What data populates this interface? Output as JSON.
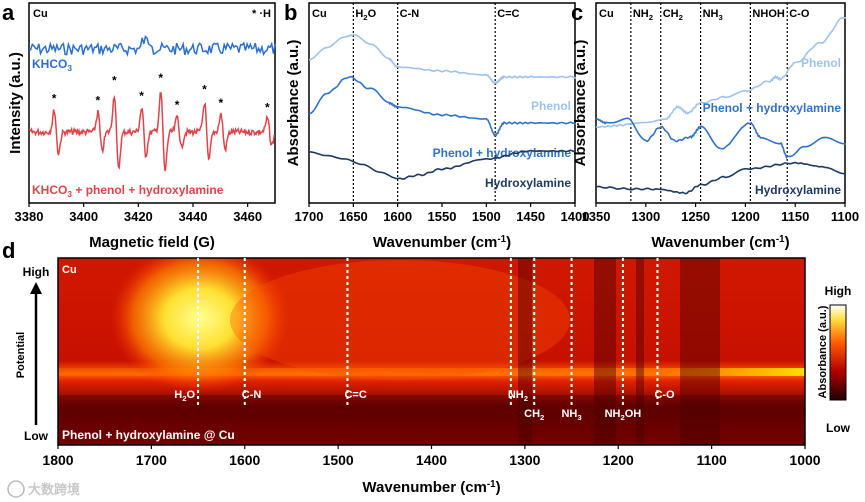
{
  "colors": {
    "blue": "#2a6fd1",
    "red": "#e0434a",
    "light_blue": "#9fc3ea",
    "mid_blue": "#2f72c8",
    "navy": "#1d3a63"
  },
  "watermark": "大数跨境",
  "chart_data": [
    {
      "panel": "a",
      "type": "line",
      "xlabel": "Magnetic field (G)",
      "ylabel": "Intensity (a.u.)",
      "xlim": [
        3380,
        3470
      ],
      "xticks": [
        "3380",
        "3400",
        "3420",
        "3440",
        "3460"
      ],
      "xtick_values": [
        3380,
        3400,
        3420,
        3440,
        3460
      ],
      "corner_label": "Cu",
      "legend_marker": "* ·H",
      "series": [
        {
          "name": "KHCO",
          "sub": "3",
          "suffix": "",
          "color": "#2a6fd1",
          "kind": "noise"
        },
        {
          "name": "KHCO",
          "sub": "3",
          "suffix": " + phenol + hydroxylamine",
          "color": "#e0434a",
          "kind": "peaks",
          "peaks": [
            3390,
            3406,
            3412,
            3422,
            3429,
            3435,
            3445,
            3451,
            3468
          ],
          "amplitudes": [
            0.55,
            0.5,
            0.95,
            0.6,
            1.0,
            0.4,
            0.75,
            0.45,
            0.35
          ]
        }
      ]
    },
    {
      "panel": "b",
      "type": "line",
      "xlabel": "Wavenumber (cm-1)",
      "ylabel": "Absorbance (a.u.)",
      "xlim": [
        1700,
        1400
      ],
      "xticks": [
        "1700",
        "1650",
        "1600",
        "1550",
        "1500",
        "1450",
        "1400"
      ],
      "xtick_values": [
        1700,
        1650,
        1600,
        1550,
        1500,
        1450,
        1400
      ],
      "corner_label": "Cu",
      "markers": [
        {
          "x": 1650,
          "label": "H",
          "sub": "2",
          "suffix": "O"
        },
        {
          "x": 1600,
          "label": "C-N",
          "sub": "",
          "suffix": ""
        },
        {
          "x": 1490,
          "label": "C=C",
          "sub": "",
          "suffix": ""
        }
      ],
      "series": [
        {
          "name": "Phenol",
          "color": "#9fc3ea",
          "points": [
            [
              1700,
              0.72
            ],
            [
              1680,
              0.78
            ],
            [
              1660,
              0.83
            ],
            [
              1650,
              0.84
            ],
            [
              1630,
              0.79
            ],
            [
              1610,
              0.72
            ],
            [
              1600,
              0.68
            ],
            [
              1550,
              0.66
            ],
            [
              1500,
              0.64
            ],
            [
              1490,
              0.6
            ],
            [
              1480,
              0.63
            ],
            [
              1450,
              0.63
            ],
            [
              1400,
              0.63
            ]
          ]
        },
        {
          "name": "Phenol + hydroxylamine",
          "color": "#2f72c8",
          "points": [
            [
              1700,
              0.45
            ],
            [
              1680,
              0.55
            ],
            [
              1655,
              0.63
            ],
            [
              1630,
              0.57
            ],
            [
              1610,
              0.5
            ],
            [
              1600,
              0.48
            ],
            [
              1550,
              0.44
            ],
            [
              1500,
              0.42
            ],
            [
              1490,
              0.34
            ],
            [
              1480,
              0.4
            ],
            [
              1450,
              0.4
            ],
            [
              1400,
              0.4
            ]
          ]
        },
        {
          "name": "Hydroxylamine",
          "color": "#1d3a63",
          "points": [
            [
              1700,
              0.26
            ],
            [
              1680,
              0.24
            ],
            [
              1660,
              0.22
            ],
            [
              1640,
              0.19
            ],
            [
              1620,
              0.15
            ],
            [
              1600,
              0.12
            ],
            [
              1575,
              0.14
            ],
            [
              1550,
              0.17
            ],
            [
              1500,
              0.22
            ],
            [
              1450,
              0.26
            ],
            [
              1400,
              0.26
            ]
          ]
        }
      ]
    },
    {
      "panel": "c",
      "type": "line",
      "xlabel": "Wavenumber (cm-1)",
      "ylabel": "Absorbance (a.u.)",
      "xlim": [
        1350,
        1100
      ],
      "xticks": [
        "1350",
        "1300",
        "1250",
        "1200",
        "1150",
        "1100"
      ],
      "xtick_values": [
        1350,
        1300,
        1250,
        1200,
        1150,
        1100
      ],
      "corner_label": "Cu",
      "markers": [
        {
          "x": 1315,
          "label": "NH",
          "sub": "2",
          "suffix": ""
        },
        {
          "x": 1285,
          "label": "CH",
          "sub": "2",
          "suffix": ""
        },
        {
          "x": 1245,
          "label": "NH",
          "sub": "3",
          "suffix": ""
        },
        {
          "x": 1195,
          "label": "NH",
          "sub": "",
          "suffix": ""
        },
        {
          "x": 1158,
          "label": "C-O",
          "sub": "",
          "suffix": ""
        }
      ],
      "marker_extra": "OH",
      "series": [
        {
          "name": "Phenol",
          "color": "#9fc3ea",
          "points": [
            [
              1350,
              0.38
            ],
            [
              1320,
              0.39
            ],
            [
              1300,
              0.4
            ],
            [
              1280,
              0.42
            ],
            [
              1268,
              0.48
            ],
            [
              1258,
              0.45
            ],
            [
              1245,
              0.5
            ],
            [
              1220,
              0.53
            ],
            [
              1200,
              0.56
            ],
            [
              1175,
              0.61
            ],
            [
              1170,
              0.63
            ],
            [
              1165,
              0.62
            ],
            [
              1150,
              0.7
            ],
            [
              1125,
              0.8
            ],
            [
              1100,
              0.93
            ]
          ]
        },
        {
          "name": "Phenol + hydroxylamine",
          "color": "#2f72c8",
          "points": [
            [
              1350,
              0.42
            ],
            [
              1340,
              0.4
            ],
            [
              1318,
              0.42
            ],
            [
              1300,
              0.31
            ],
            [
              1285,
              0.38
            ],
            [
              1270,
              0.31
            ],
            [
              1255,
              0.33
            ],
            [
              1245,
              0.38
            ],
            [
              1225,
              0.27
            ],
            [
              1195,
              0.4
            ],
            [
              1185,
              0.33
            ],
            [
              1165,
              0.3
            ],
            [
              1158,
              0.23
            ],
            [
              1140,
              0.28
            ],
            [
              1120,
              0.33
            ],
            [
              1100,
              0.3
            ]
          ]
        },
        {
          "name": "Hydroxylamine",
          "color": "#1d3a63",
          "points": [
            [
              1350,
              0.08
            ],
            [
              1315,
              0.07
            ],
            [
              1290,
              0.07
            ],
            [
              1260,
              0.05
            ],
            [
              1245,
              0.09
            ],
            [
              1220,
              0.13
            ],
            [
              1200,
              0.17
            ],
            [
              1150,
              0.2
            ],
            [
              1120,
              0.18
            ],
            [
              1100,
              0.15
            ]
          ]
        }
      ]
    },
    {
      "panel": "d",
      "type": "heatmap",
      "xlabel": "Wavenumber (cm-1)",
      "ylabel": "Potential",
      "y_high": "High",
      "y_low": "Low",
      "xlim": [
        1800,
        1000
      ],
      "xticks": [
        "1800",
        "1700",
        "1600",
        "1500",
        "1400",
        "1300",
        "1200",
        "1100",
        "1000"
      ],
      "xtick_values": [
        1800,
        1700,
        1600,
        1500,
        1400,
        1300,
        1200,
        1100,
        1000
      ],
      "corner_label": "Cu",
      "caption": "Phenol + hydroxylamine @ Cu",
      "markers": [
        {
          "x": 1650,
          "label": "H",
          "sub": "2",
          "suffix": "O",
          "row": "upper"
        },
        {
          "x": 1600,
          "label": "C-N",
          "sub": "",
          "suffix": "",
          "row": "upper"
        },
        {
          "x": 1490,
          "label": "C=C",
          "sub": "",
          "suffix": "",
          "row": "upper"
        },
        {
          "x": 1315,
          "label": "NH",
          "sub": "2",
          "suffix": "",
          "row": "upper"
        },
        {
          "x": 1290,
          "label": "CH",
          "sub": "2",
          "suffix": "",
          "row": "lower"
        },
        {
          "x": 1250,
          "label": "NH",
          "sub": "3",
          "suffix": "",
          "row": "lower"
        },
        {
          "x": 1195,
          "label": "NH",
          "sub": "2",
          "suffix": "OH",
          "row": "lower"
        },
        {
          "x": 1158,
          "label": "C-O",
          "sub": "",
          "suffix": "",
          "row": "upper"
        }
      ],
      "colorbar": {
        "label": "Absorbance (a.u.)",
        "high": "High",
        "low": "Low"
      }
    }
  ],
  "panel_labels": [
    "a",
    "b",
    "c",
    "d"
  ]
}
